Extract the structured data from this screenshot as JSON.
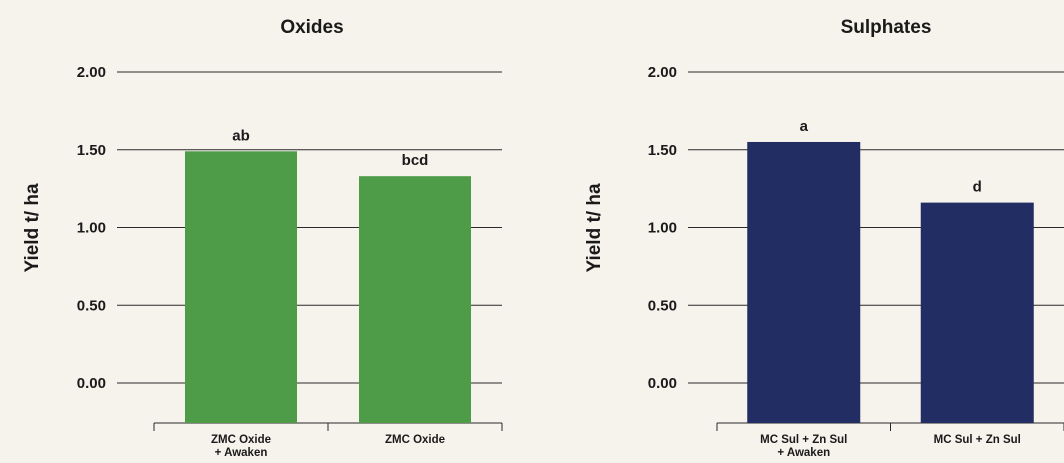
{
  "chart_data": [
    {
      "type": "bar",
      "title": "Oxides",
      "ylabel": "Yield t/ ha",
      "xlabel": "",
      "ylim": [
        0,
        2
      ],
      "yticks": [
        "0.00",
        "0.50",
        "1.00",
        "1.50",
        "2.00"
      ],
      "ytick_values": [
        0,
        0.5,
        1.0,
        1.5,
        2.0
      ],
      "grid": true,
      "color": "#4e9b48",
      "categories": [
        [
          "ZMC Oxide",
          "+ Awaken"
        ],
        [
          "ZMC Oxide"
        ]
      ],
      "values": [
        1.49,
        1.33
      ],
      "labels": [
        "ab",
        "bcd"
      ]
    },
    {
      "type": "bar",
      "title": "Sulphates",
      "ylabel": "Yield t/ ha",
      "xlabel": "",
      "ylim": [
        0,
        2
      ],
      "yticks": [
        "0.00",
        "0.50",
        "1.00",
        "1.50",
        "2.00"
      ],
      "ytick_values": [
        0,
        0.5,
        1.0,
        1.5,
        2.0
      ],
      "grid": true,
      "color": "#222d63",
      "categories": [
        [
          "MC Sul + Zn Sul",
          "+ Awaken"
        ],
        [
          "MC Sul + Zn Sul"
        ]
      ],
      "values": [
        1.55,
        1.16
      ],
      "labels": [
        "a",
        "d"
      ]
    }
  ]
}
